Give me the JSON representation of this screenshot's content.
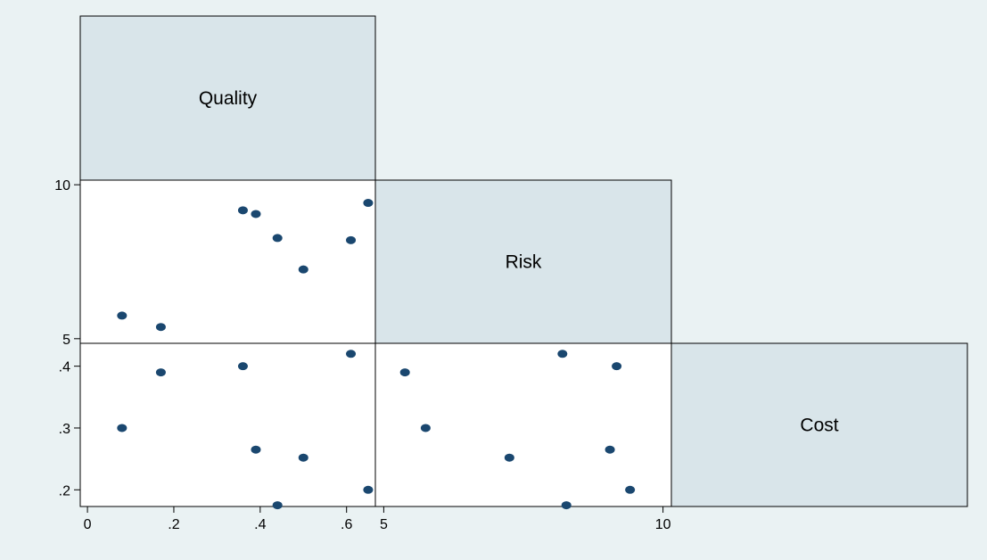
{
  "colors": {
    "background": "#eaf2f3",
    "diagonal_cell": "#d9e5ea",
    "plot_cell": "#ffffff",
    "marker": "#1a476f",
    "frame": "#000000"
  },
  "chart_data": {
    "type": "scatter",
    "subtype": "scatterplot-matrix (lower half)",
    "variables": [
      "Quality",
      "Risk",
      "Cost"
    ],
    "axes": {
      "Quality": {
        "range": [
          -0.0167,
          0.6667
        ],
        "ticks": [
          0,
          0.2,
          0.4,
          0.6
        ],
        "tick_labels": [
          "0",
          ".2",
          ".4",
          ".6"
        ]
      },
      "Risk": {
        "range": [
          4.85,
          10.15
        ],
        "ticks": [
          5,
          10
        ],
        "tick_labels": [
          "5",
          "10"
        ]
      },
      "Cost": {
        "range": [
          0.173,
          0.437
        ],
        "ticks": [
          0.2,
          0.3,
          0.4
        ],
        "tick_labels": [
          ".2",
          ".3",
          ".4"
        ]
      }
    },
    "observations": [
      {
        "Quality": 0.08,
        "Risk": 5.75,
        "Cost": 0.3
      },
      {
        "Quality": 0.17,
        "Risk": 5.38,
        "Cost": 0.39
      },
      {
        "Quality": 0.36,
        "Risk": 9.17,
        "Cost": 0.4
      },
      {
        "Quality": 0.39,
        "Risk": 9.05,
        "Cost": 0.265
      },
      {
        "Quality": 0.44,
        "Risk": 8.27,
        "Cost": 0.175
      },
      {
        "Quality": 0.5,
        "Risk": 7.25,
        "Cost": 0.252
      },
      {
        "Quality": 0.61,
        "Risk": 8.2,
        "Cost": 0.42
      },
      {
        "Quality": 0.65,
        "Risk": 9.41,
        "Cost": 0.2
      }
    ],
    "grid": false,
    "legend": "none"
  }
}
